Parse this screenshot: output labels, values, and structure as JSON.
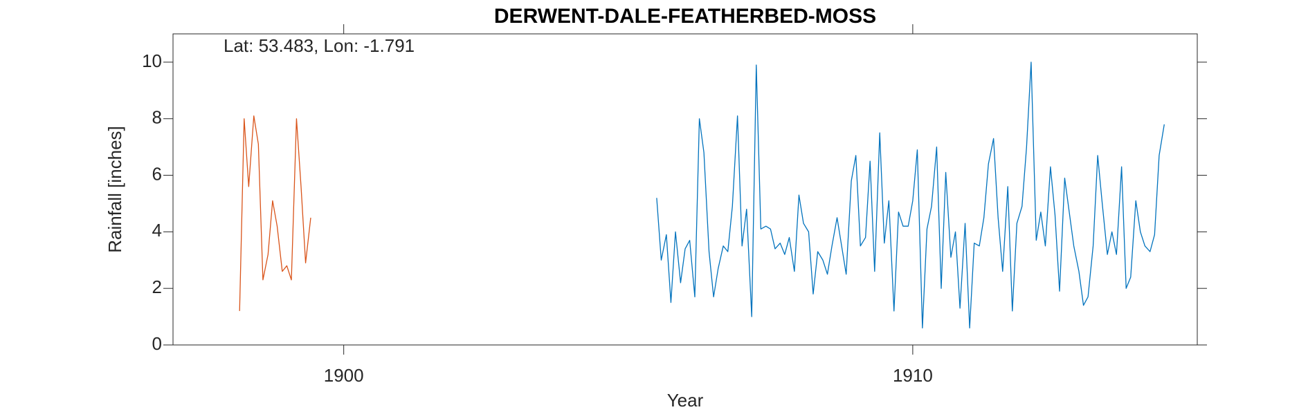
{
  "chart_data": {
    "type": "line",
    "title": "DERWENT-DALE-FEATHERBED-MOSS",
    "annotation": "Lat: 53.483, Lon: -1.791",
    "x_label": "Year",
    "y_label": "Rainfall [inches]",
    "xlim": [
      1897,
      1915
    ],
    "xticks": [
      1900,
      1910
    ],
    "ylim": [
      0,
      11
    ],
    "yticks": [
      0,
      2,
      4,
      6,
      8,
      10
    ],
    "grid": false,
    "series": [
      {
        "color": "#d95319",
        "x": [
          1898.17,
          1898.25,
          1898.33,
          1898.42,
          1898.5,
          1898.58,
          1898.67,
          1898.75,
          1898.83,
          1898.92,
          1899.0,
          1899.08,
          1899.17,
          1899.25,
          1899.33,
          1899.42
        ],
        "values": [
          1.2,
          8.0,
          5.6,
          8.1,
          7.1,
          2.3,
          3.2,
          5.1,
          4.2,
          2.6,
          2.8,
          2.3,
          8.0,
          5.6,
          2.9,
          4.5
        ]
      },
      {
        "color": "#0072bd",
        "x": [
          1905.5,
          1905.58,
          1905.67,
          1905.75,
          1905.83,
          1905.92,
          1906.0,
          1906.08,
          1906.17,
          1906.25,
          1906.33,
          1906.42,
          1906.5,
          1906.58,
          1906.67,
          1906.75,
          1906.83,
          1906.92,
          1907.0,
          1907.08,
          1907.17,
          1907.25,
          1907.33,
          1907.42,
          1907.5,
          1907.58,
          1907.67,
          1907.75,
          1907.83,
          1907.92,
          1908.0,
          1908.08,
          1908.17,
          1908.25,
          1908.33,
          1908.42,
          1908.5,
          1908.58,
          1908.67,
          1908.75,
          1908.83,
          1908.92,
          1909.0,
          1909.08,
          1909.17,
          1909.25,
          1909.33,
          1909.42,
          1909.5,
          1909.58,
          1909.67,
          1909.75,
          1909.83,
          1909.92,
          1910.0,
          1910.08,
          1910.17,
          1910.25,
          1910.33,
          1910.42,
          1910.5,
          1910.58,
          1910.67,
          1910.75,
          1910.83,
          1910.92,
          1911.0,
          1911.08,
          1911.17,
          1911.25,
          1911.33,
          1911.42,
          1911.5,
          1911.58,
          1911.67,
          1911.75,
          1911.83,
          1911.92,
          1912.0,
          1912.08,
          1912.17,
          1912.25,
          1912.33,
          1912.42,
          1912.5,
          1912.58,
          1912.67,
          1912.75,
          1912.83,
          1912.92,
          1913.0,
          1913.08,
          1913.17,
          1913.25,
          1913.33,
          1913.42,
          1913.5,
          1913.58,
          1913.67,
          1913.75,
          1913.83,
          1913.92,
          1914.0,
          1914.08,
          1914.17,
          1914.25,
          1914.33,
          1914.42
        ],
        "values": [
          5.2,
          3.0,
          3.9,
          1.5,
          4.0,
          2.2,
          3.4,
          3.7,
          1.7,
          8.0,
          6.8,
          3.3,
          1.7,
          2.7,
          3.5,
          3.3,
          4.9,
          8.1,
          3.5,
          4.8,
          1.0,
          9.9,
          4.1,
          4.2,
          4.1,
          3.4,
          3.6,
          3.2,
          3.8,
          2.6,
          5.3,
          4.3,
          4.0,
          1.8,
          3.3,
          3.0,
          2.5,
          3.5,
          4.5,
          3.5,
          2.5,
          5.8,
          6.7,
          3.5,
          3.8,
          6.5,
          2.6,
          7.5,
          3.6,
          5.1,
          1.2,
          4.7,
          4.2,
          4.2,
          5.1,
          6.9,
          0.6,
          4.1,
          4.9,
          7.0,
          2.0,
          6.1,
          3.1,
          4.0,
          1.3,
          4.3,
          0.6,
          3.6,
          3.5,
          4.5,
          6.4,
          7.3,
          4.5,
          2.6,
          5.6,
          1.2,
          4.3,
          4.9,
          7.0,
          10.0,
          3.7,
          4.7,
          3.5,
          6.3,
          4.6,
          1.9,
          5.9,
          4.7,
          3.5,
          2.6,
          1.4,
          1.7,
          3.5,
          6.7,
          5.0,
          3.2,
          4.0,
          3.2,
          6.3,
          2.0,
          2.4,
          5.1,
          4.0,
          3.5,
          3.3,
          3.9,
          6.7,
          7.8
        ]
      }
    ]
  }
}
